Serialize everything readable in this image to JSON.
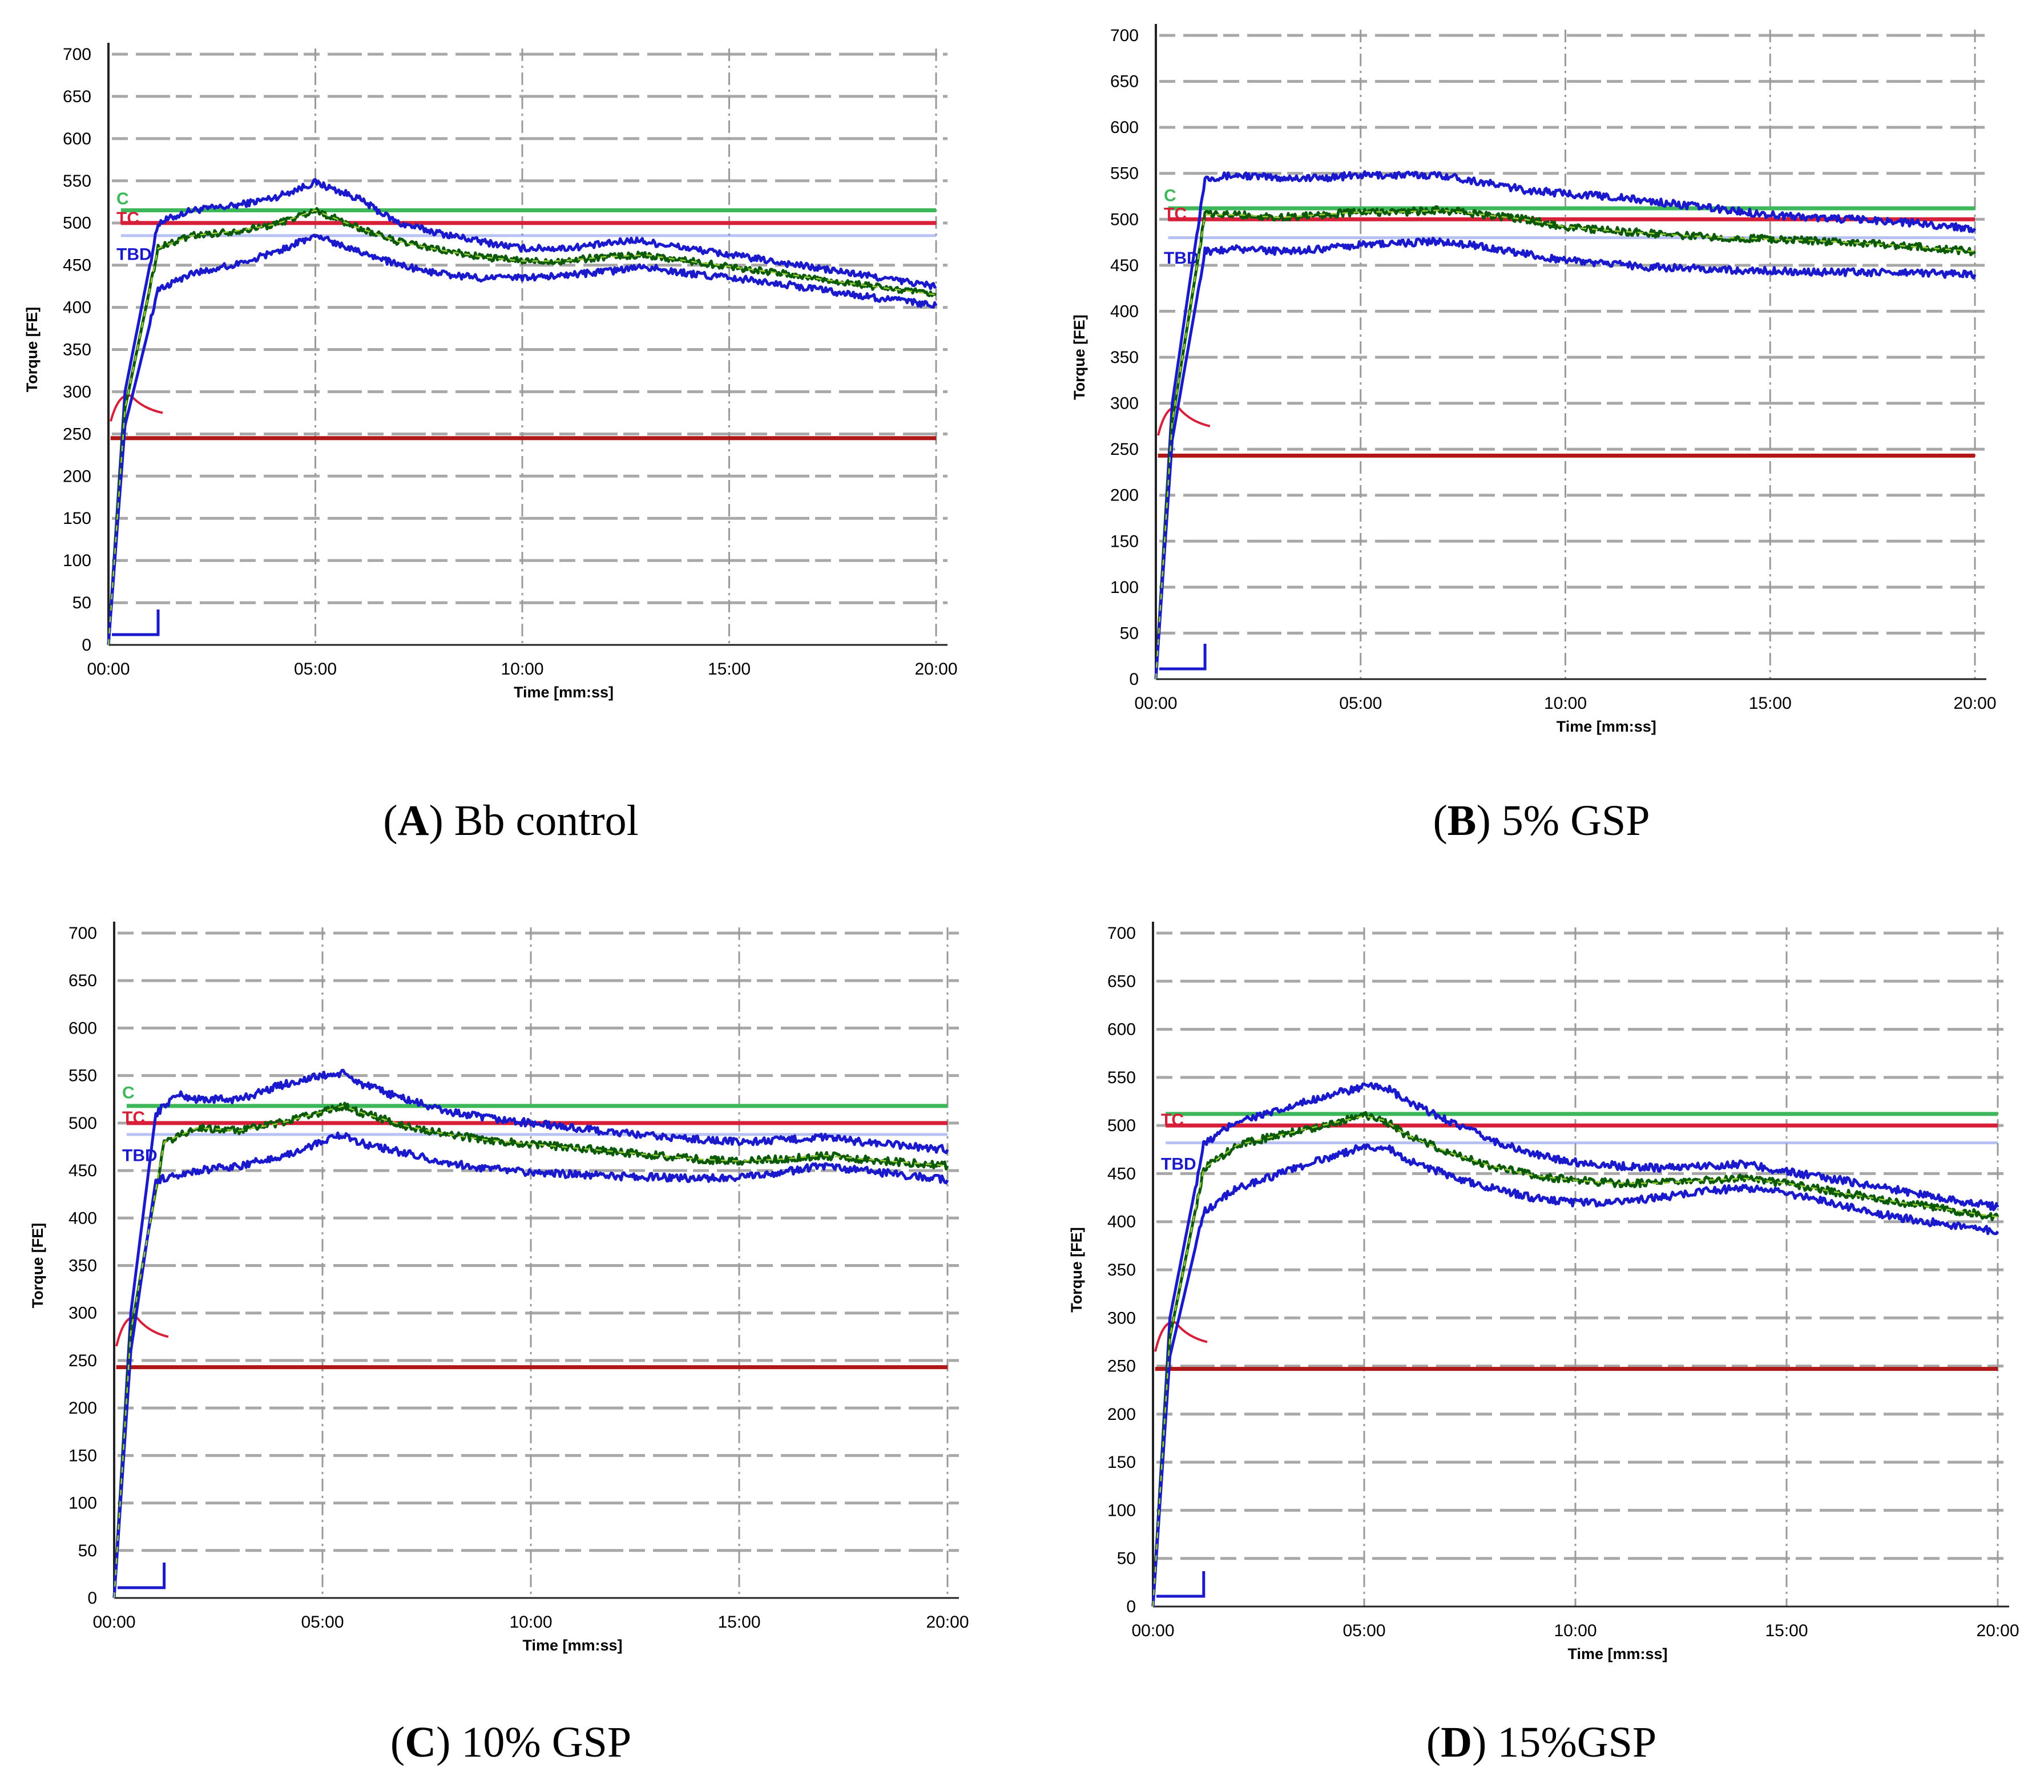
{
  "colors": {
    "upper_band": "#1a1acc",
    "lower_band": "#1a1acc",
    "center_line": "#0a5a0a",
    "target_line": "#d81f3a",
    "c_line": "#3cb85a",
    "tbd_line": "#8899ee",
    "bottom_line": "#b01818",
    "grid": "#a8a8a8"
  },
  "chart_data": [
    {
      "type": "line",
      "panel_letter": "A",
      "panel_text": "Bb control",
      "xlabel": "Time [mm:ss]",
      "ylabel": "Torque [FE]",
      "ylim": [
        0,
        700
      ],
      "xlim_minutes": [
        0,
        20
      ],
      "x_tick_labels": [
        "00:00",
        "05:00",
        "10:00",
        "15:00",
        "20:00"
      ],
      "y_tick_labels": [
        "0",
        "50",
        "100",
        "150",
        "200",
        "250",
        "300",
        "350",
        "400",
        "450",
        "500",
        "550",
        "600",
        "650",
        "700"
      ],
      "marker_labels": [
        "C",
        "TC",
        "TBD"
      ],
      "reference_lines": {
        "c": 515,
        "target": 500,
        "tbd": 485,
        "bottom": 245
      },
      "series": [
        {
          "name": "upper",
          "x": [
            0,
            0.4,
            1.2,
            2,
            3,
            4,
            5,
            6,
            7,
            8,
            9,
            10,
            11,
            12,
            12.7,
            14,
            16,
            18,
            20
          ],
          "y": [
            0,
            300,
            500,
            515,
            520,
            530,
            548,
            530,
            500,
            488,
            478,
            470,
            470,
            475,
            480,
            470,
            455,
            440,
            425
          ]
        },
        {
          "name": "center",
          "x": [
            0,
            0.4,
            1.2,
            2,
            3,
            4,
            5,
            6,
            7,
            8,
            9,
            10,
            11,
            12,
            13,
            14,
            16,
            18,
            20
          ],
          "y": [
            0,
            280,
            470,
            485,
            490,
            498,
            515,
            495,
            478,
            468,
            460,
            455,
            455,
            460,
            462,
            455,
            442,
            428,
            415
          ]
        },
        {
          "name": "lower",
          "x": [
            0,
            0.4,
            1.2,
            2,
            3,
            4,
            5,
            6,
            7,
            8,
            9,
            10,
            11,
            12,
            13,
            14,
            16,
            18,
            20
          ],
          "y": [
            0,
            260,
            420,
            440,
            450,
            465,
            485,
            468,
            450,
            440,
            435,
            435,
            438,
            442,
            448,
            440,
            430,
            415,
            402
          ]
        }
      ]
    },
    {
      "type": "line",
      "panel_letter": "B",
      "panel_text": "5% GSP",
      "xlabel": "Time [mm:ss]",
      "ylabel": "Torque [FE]",
      "ylim": [
        0,
        700
      ],
      "xlim_minutes": [
        0,
        20
      ],
      "x_tick_labels": [
        "00:00",
        "05:00",
        "10:00",
        "15:00",
        "20:00"
      ],
      "y_tick_labels": [
        "0",
        "50",
        "100",
        "150",
        "200",
        "250",
        "300",
        "350",
        "400",
        "450",
        "500",
        "550",
        "600",
        "650",
        "700"
      ],
      "marker_labels": [
        "C",
        "TC",
        "TBD"
      ],
      "reference_lines": {
        "c": 512,
        "target": 500,
        "tbd": 480,
        "bottom": 243
      },
      "series": [
        {
          "name": "upper",
          "x": [
            0,
            0.4,
            1.2,
            2,
            3,
            4,
            5,
            6,
            7,
            8,
            9,
            10,
            11,
            12,
            13,
            14,
            15,
            16,
            18,
            20
          ],
          "y": [
            0,
            300,
            545,
            548,
            545,
            545,
            548,
            548,
            548,
            540,
            532,
            528,
            525,
            520,
            515,
            510,
            505,
            502,
            498,
            490
          ]
        },
        {
          "name": "center",
          "x": [
            0,
            0.4,
            1.2,
            2,
            3,
            4,
            5,
            6,
            7,
            8,
            9,
            10,
            11,
            12,
            13,
            14,
            16,
            18,
            20
          ],
          "y": [
            0,
            280,
            505,
            505,
            502,
            505,
            508,
            508,
            510,
            505,
            500,
            492,
            488,
            485,
            482,
            480,
            477,
            472,
            465
          ]
        },
        {
          "name": "lower",
          "x": [
            0,
            0.4,
            1.2,
            2,
            3,
            4,
            5,
            6,
            7,
            8,
            9,
            10,
            11,
            12,
            13,
            14,
            16,
            18,
            20
          ],
          "y": [
            0,
            260,
            465,
            468,
            465,
            468,
            472,
            474,
            476,
            470,
            462,
            456,
            452,
            448,
            447,
            445,
            443,
            442,
            440
          ]
        }
      ]
    },
    {
      "type": "line",
      "panel_letter": "C",
      "panel_text": "10% GSP",
      "xlabel": "Time [mm:ss]",
      "ylabel": "Torque [FE]",
      "ylim": [
        0,
        700
      ],
      "xlim_minutes": [
        0,
        20
      ],
      "x_tick_labels": [
        "00:00",
        "05:00",
        "10:00",
        "15:00",
        "20:00"
      ],
      "y_tick_labels": [
        "0",
        "50",
        "100",
        "150",
        "200",
        "250",
        "300",
        "350",
        "400",
        "450",
        "500",
        "550",
        "600",
        "650",
        "700"
      ],
      "marker_labels": [
        "C",
        "TC",
        "TBD"
      ],
      "reference_lines": {
        "c": 518,
        "target": 500,
        "tbd": 488,
        "bottom": 243
      },
      "series": [
        {
          "name": "upper",
          "x": [
            0,
            0.4,
            1,
            1.5,
            2,
            3,
            4,
            5,
            5.5,
            6,
            7,
            8,
            9,
            10,
            11,
            12,
            13,
            14,
            15,
            16,
            17,
            18,
            20
          ],
          "y": [
            0,
            300,
            510,
            530,
            525,
            525,
            540,
            550,
            552,
            540,
            525,
            512,
            505,
            500,
            495,
            490,
            486,
            483,
            480,
            482,
            485,
            480,
            472
          ]
        },
        {
          "name": "center",
          "x": [
            0,
            0.4,
            1.2,
            2,
            3,
            4,
            5,
            5.5,
            6,
            7,
            8,
            9,
            10,
            11,
            12,
            13,
            14,
            15,
            16,
            17,
            18,
            20
          ],
          "y": [
            0,
            280,
            480,
            495,
            492,
            500,
            512,
            518,
            510,
            497,
            488,
            482,
            478,
            474,
            470,
            466,
            462,
            460,
            462,
            466,
            462,
            455
          ]
        },
        {
          "name": "lower",
          "x": [
            0,
            0.4,
            1,
            2,
            3,
            4,
            5,
            5.5,
            6,
            7,
            8,
            9,
            10,
            11,
            12,
            13,
            14,
            15,
            16,
            17,
            18,
            20
          ],
          "y": [
            0,
            260,
            440,
            450,
            455,
            465,
            480,
            488,
            478,
            468,
            458,
            452,
            448,
            446,
            444,
            443,
            442,
            443,
            448,
            455,
            450,
            440
          ]
        }
      ]
    },
    {
      "type": "line",
      "panel_letter": "D",
      "panel_text": "15%GSP",
      "xlabel": "Time [mm:ss]",
      "ylabel": "Torque [FE]",
      "ylim": [
        0,
        700
      ],
      "xlim_minutes": [
        0,
        20
      ],
      "x_tick_labels": [
        "00:00",
        "05:00",
        "10:00",
        "15:00",
        "20:00"
      ],
      "y_tick_labels": [
        "0",
        "50",
        "100",
        "150",
        "200",
        "250",
        "300",
        "350",
        "400",
        "450",
        "500",
        "550",
        "600",
        "650",
        "700"
      ],
      "marker_labels": [
        "TC",
        "TBD"
      ],
      "reference_lines": {
        "c": 512,
        "target": 500,
        "tbd": 482,
        "bottom": 247
      },
      "series": [
        {
          "name": "upper",
          "x": [
            0,
            0.4,
            1.2,
            2,
            3,
            4,
            5,
            5.5,
            6,
            7,
            8,
            9,
            10,
            11,
            12,
            13,
            14,
            15,
            16,
            17,
            18,
            20
          ],
          "y": [
            0,
            300,
            480,
            505,
            515,
            530,
            540,
            540,
            525,
            505,
            485,
            470,
            462,
            458,
            456,
            458,
            460,
            452,
            445,
            438,
            430,
            415
          ]
        },
        {
          "name": "center",
          "x": [
            0,
            0.4,
            1.2,
            2,
            3,
            4,
            5,
            5.5,
            6,
            7,
            8,
            9,
            10,
            11,
            12,
            13,
            14,
            15,
            16,
            17,
            18,
            20
          ],
          "y": [
            0,
            280,
            455,
            480,
            490,
            500,
            510,
            505,
            490,
            472,
            458,
            448,
            443,
            440,
            440,
            443,
            445,
            440,
            432,
            425,
            418,
            405
          ]
        },
        {
          "name": "lower",
          "x": [
            0,
            0.4,
            1.2,
            2,
            3,
            4,
            5,
            5.5,
            6,
            7,
            8,
            9,
            10,
            11,
            12,
            13,
            14,
            15,
            16,
            17,
            18,
            20
          ],
          "y": [
            0,
            260,
            410,
            435,
            450,
            465,
            478,
            478,
            465,
            448,
            435,
            425,
            420,
            420,
            425,
            432,
            435,
            430,
            420,
            410,
            402,
            390
          ]
        }
      ]
    }
  ]
}
